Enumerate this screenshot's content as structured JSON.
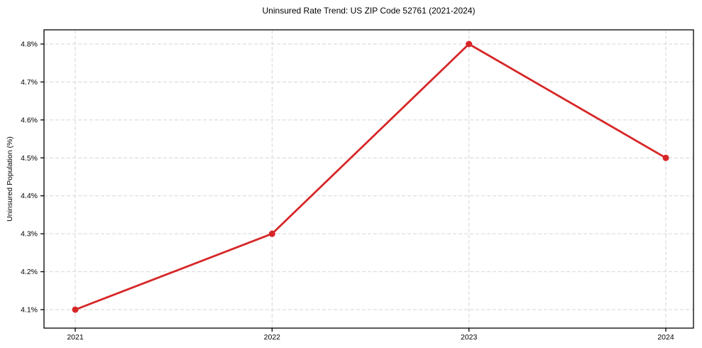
{
  "chart_data": {
    "type": "line",
    "title": "Uninsured Rate Trend: US ZIP Code 52761 (2021-2024)",
    "xlabel": "",
    "ylabel": "Uninsured Population (%)",
    "categories": [
      "2021",
      "2022",
      "2023",
      "2024"
    ],
    "values": [
      4.1,
      4.3,
      4.8,
      4.5
    ],
    "yticks": [
      4.1,
      4.2,
      4.3,
      4.4,
      4.5,
      4.6,
      4.7,
      4.8
    ],
    "ytick_suffix": "%",
    "ylim": [
      4.05,
      4.84
    ],
    "grid": "dashed",
    "legend": "none",
    "colors": {
      "line": "#d62728",
      "marker": "#d62728",
      "grid": "#d5d5d5",
      "frame": "#000000",
      "text": "#000000",
      "background": "#ffffff"
    }
  }
}
